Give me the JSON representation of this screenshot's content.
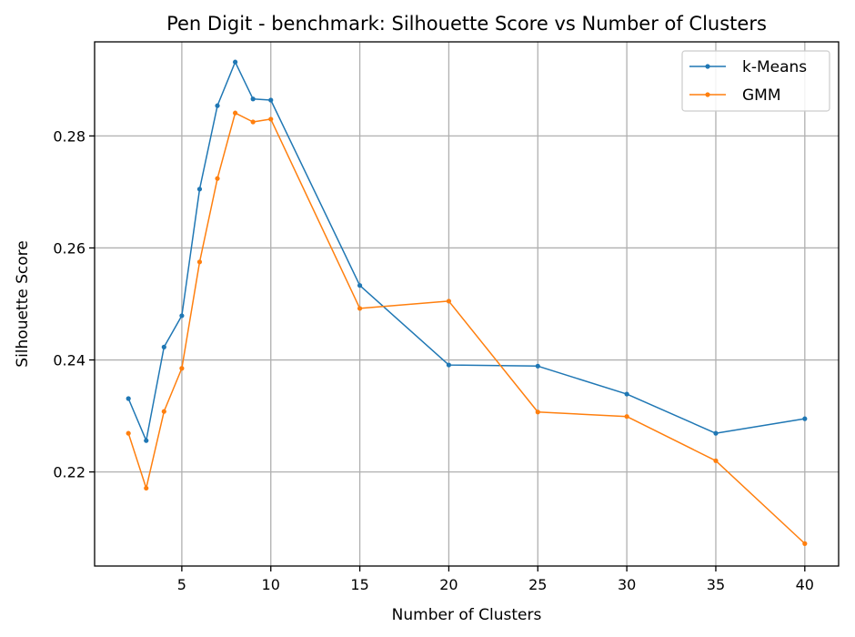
{
  "chart_data": {
    "type": "line",
    "title": "Pen Digit - benchmark: Silhouette Score vs Number of Clusters",
    "xlabel": "Number of Clusters",
    "ylabel": "Silhouette Score",
    "xlim": [
      0.1,
      41.9
    ],
    "ylim": [
      0.2032,
      0.2968
    ],
    "xticks": [
      5,
      10,
      15,
      20,
      25,
      30,
      35,
      40
    ],
    "yticks": [
      0.22,
      0.24,
      0.26,
      0.28
    ],
    "ytick_labels": [
      "0.22",
      "0.24",
      "0.26",
      "0.28"
    ],
    "grid": true,
    "legend_position": "top-right",
    "x": [
      2,
      3,
      4,
      5,
      6,
      7,
      8,
      9,
      10,
      15,
      20,
      25,
      30,
      35,
      40
    ],
    "series": [
      {
        "name": "k-Means",
        "color": "#1f77b4",
        "values": [
          0.2331,
          0.2256,
          0.2423,
          0.2479,
          0.2705,
          0.2854,
          0.2932,
          0.2866,
          0.2864,
          0.2533,
          0.2391,
          0.2389,
          0.2339,
          0.2269,
          0.2295
        ]
      },
      {
        "name": "GMM",
        "color": "#ff7f0e",
        "values": [
          0.2269,
          0.2171,
          0.2308,
          0.2385,
          0.2575,
          0.2724,
          0.2841,
          0.2825,
          0.283,
          0.2492,
          0.2505,
          0.2307,
          0.2299,
          0.222,
          0.2072
        ]
      }
    ]
  }
}
